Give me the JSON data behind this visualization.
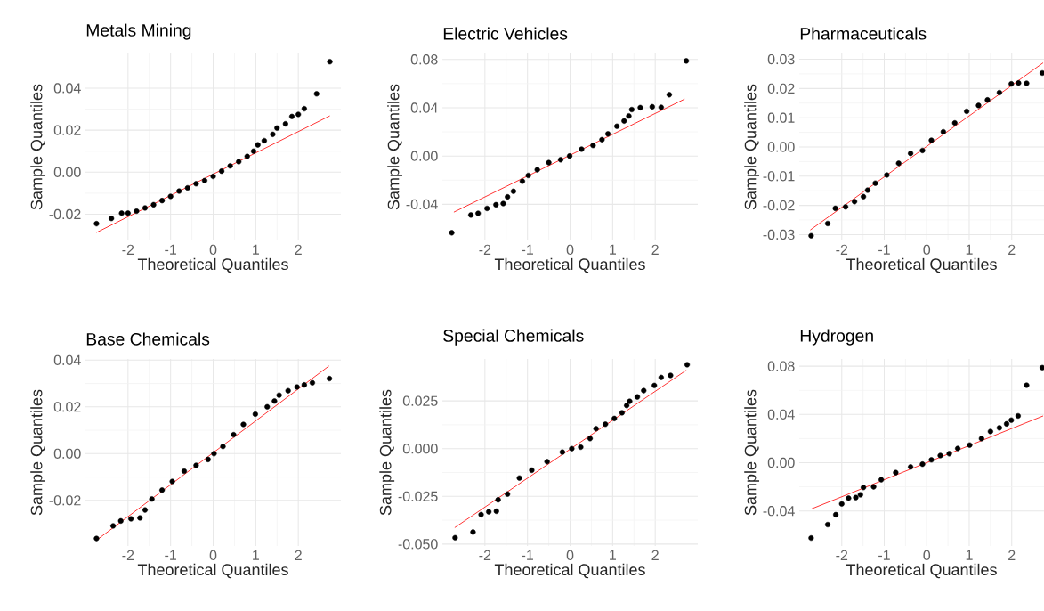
{
  "chart_data": [
    {
      "type": "scatter",
      "title": "Metals Mining",
      "xlabel": "Theoretical Quantiles",
      "ylabel": "Sample Quantiles",
      "grid": true,
      "xlim": [
        -3.0,
        3.0
      ],
      "xticks": [
        -2,
        -1,
        0,
        1,
        2
      ],
      "ylim": [
        -0.0325,
        0.0565
      ],
      "yticks": [
        {
          "value": -0.02,
          "label": "-0.02"
        },
        {
          "value": 0,
          "label": "0.00"
        },
        {
          "value": 0.02,
          "label": "0.02"
        },
        {
          "value": 0.04,
          "label": "0.04"
        }
      ],
      "series": [
        {
          "type": "scatter",
          "marker": "circle",
          "color": "#000000",
          "x": [
            -2.74,
            -2.39,
            -2.15,
            -2.0,
            -1.8,
            -1.6,
            -1.4,
            -1.2,
            -1.0,
            -0.8,
            -0.6,
            -0.4,
            -0.2,
            0,
            0.2,
            0.4,
            0.6,
            0.8,
            0.95,
            1.05,
            1.2,
            1.4,
            1.5,
            1.7,
            1.85,
            2.0,
            2.14,
            2.43,
            2.74
          ],
          "values": [
            -0.0245,
            -0.022,
            -0.0195,
            -0.0195,
            -0.0185,
            -0.017,
            -0.0155,
            -0.0135,
            -0.0115,
            -0.009,
            -0.0075,
            -0.0055,
            -0.004,
            -0.002,
            0.0005,
            0.003,
            0.005,
            0.0075,
            0.01,
            0.013,
            0.015,
            0.018,
            0.021,
            0.023,
            0.0265,
            0.0275,
            0.0302,
            0.0373,
            0.0526
          ]
        },
        {
          "type": "line",
          "color": "#ff0000",
          "x": [
            -2.74,
            2.74
          ],
          "values": [
            -0.0287,
            0.0268
          ]
        }
      ]
    },
    {
      "type": "scatter",
      "title": "Electric Vehicles",
      "xlabel": "Theoretical Quantiles",
      "ylabel": "Sample Quantiles",
      "grid": true,
      "xlim": [
        -3.0,
        3.0
      ],
      "xticks": [
        -2,
        -1,
        0,
        1,
        2
      ],
      "ylim": [
        -0.07,
        0.085
      ],
      "yticks": [
        {
          "value": -0.04,
          "label": "-0.04"
        },
        {
          "value": 0,
          "label": "0.00"
        },
        {
          "value": 0.04,
          "label": "0.04"
        },
        {
          "value": 0.08,
          "label": "0.08"
        }
      ],
      "series": [
        {
          "type": "scatter",
          "marker": "circle",
          "color": "#000000",
          "x": [
            -2.78,
            -2.33,
            -2.16,
            -1.95,
            -1.74,
            -1.57,
            -1.47,
            -1.33,
            -1.12,
            -0.98,
            -0.77,
            -0.5,
            -0.22,
            -0.01,
            0.27,
            0.54,
            0.75,
            0.89,
            1.1,
            1.27,
            1.38,
            1.45,
            1.65,
            1.93,
            2.14,
            2.33,
            2.73
          ],
          "values": [
            -0.0636,
            -0.0489,
            -0.0475,
            -0.0434,
            -0.0404,
            -0.0394,
            -0.0339,
            -0.0292,
            -0.0209,
            -0.0161,
            -0.0114,
            -0.0055,
            -0.0031,
            0.0,
            0.0057,
            0.0088,
            0.0135,
            0.0183,
            0.0247,
            0.029,
            0.0332,
            0.0385,
            0.0401,
            0.0408,
            0.0404,
            0.0508,
            0.0788
          ]
        },
        {
          "type": "line",
          "color": "#ff0000",
          "x": [
            -2.73,
            2.69
          ],
          "values": [
            -0.0465,
            0.0472
          ]
        }
      ]
    },
    {
      "type": "scatter",
      "title": "Pharmaceuticals",
      "xlabel": "Theoretical Quantiles",
      "ylabel": "Sample Quantiles",
      "grid": true,
      "xlim": [
        -3.0,
        2.76
      ],
      "xticks": [
        -2,
        -1,
        0,
        1,
        2
      ],
      "ylim": [
        -0.032,
        0.032
      ],
      "yticks": [
        {
          "value": -0.03,
          "label": "-0.03"
        },
        {
          "value": -0.02,
          "label": "-0.02"
        },
        {
          "value": -0.01,
          "label": "-0.01"
        },
        {
          "value": 0,
          "label": "0.00"
        },
        {
          "value": 0.01,
          "label": "0.01"
        },
        {
          "value": 0.02,
          "label": "0.02"
        },
        {
          "value": 0.03,
          "label": "0.03"
        }
      ],
      "series": [
        {
          "type": "scatter",
          "marker": "circle",
          "color": "#000000",
          "x": [
            -2.72,
            -2.33,
            -2.15,
            -1.91,
            -1.7,
            -1.49,
            -1.39,
            -1.21,
            -0.94,
            -0.66,
            -0.38,
            -0.1,
            0.11,
            0.39,
            0.66,
            0.94,
            1.22,
            1.43,
            1.71,
            1.99,
            2.16,
            2.35,
            2.72
          ],
          "values": [
            -0.0304,
            -0.0262,
            -0.021,
            -0.0205,
            -0.0187,
            -0.017,
            -0.0148,
            -0.0124,
            -0.0096,
            -0.0056,
            -0.0022,
            -0.0012,
            0.0023,
            0.0052,
            0.0082,
            0.0122,
            0.0142,
            0.0161,
            0.0186,
            0.0216,
            0.0219,
            0.0218,
            0.0253
          ]
        },
        {
          "type": "line",
          "color": "#ff0000",
          "x": [
            -2.74,
            2.74
          ],
          "values": [
            -0.0284,
            0.0288
          ]
        }
      ]
    },
    {
      "type": "scatter",
      "title": "Base Chemicals",
      "xlabel": "Theoretical Quantiles",
      "ylabel": "Sample Quantiles",
      "grid": true,
      "xlim": [
        -3.0,
        3.0
      ],
      "xticks": [
        -2,
        -1,
        0,
        1,
        2
      ],
      "ylim": [
        -0.0395,
        0.0405
      ],
      "yticks": [
        {
          "value": -0.02,
          "label": "-0.02"
        },
        {
          "value": 0,
          "label": "0.00"
        },
        {
          "value": 0.02,
          "label": "0.02"
        },
        {
          "value": 0.04,
          "label": "0.04"
        }
      ],
      "series": [
        {
          "type": "scatter",
          "marker": "circle",
          "color": "#000000",
          "x": [
            -2.74,
            -2.35,
            -2.17,
            -1.93,
            -1.72,
            -1.6,
            -1.44,
            -1.2,
            -0.96,
            -0.68,
            -0.4,
            -0.12,
            0.02,
            0.23,
            0.48,
            0.71,
            0.99,
            1.27,
            1.44,
            1.55,
            1.76,
            1.97,
            2.14,
            2.33,
            2.73
          ],
          "values": [
            -0.0363,
            -0.0309,
            -0.0288,
            -0.0279,
            -0.0275,
            -0.0241,
            -0.0194,
            -0.0156,
            -0.0119,
            -0.0075,
            -0.005,
            -0.0025,
            0.0,
            0.0031,
            0.0081,
            0.0125,
            0.0169,
            0.02,
            0.0225,
            0.025,
            0.0269,
            0.0285,
            0.0294,
            0.0303,
            0.0321
          ]
        },
        {
          "type": "line",
          "color": "#ff0000",
          "x": [
            -2.73,
            2.72
          ],
          "values": [
            -0.0369,
            0.0375
          ]
        }
      ]
    },
    {
      "type": "scatter",
      "title": "Special Chemicals",
      "xlabel": "Theoretical Quantiles",
      "ylabel": "Sample Quantiles",
      "grid": true,
      "xlim": [
        -3.0,
        3.0
      ],
      "xticks": [
        -2,
        -1,
        0,
        1,
        2
      ],
      "ylim": [
        -0.051,
        0.047
      ],
      "yticks": [
        {
          "value": -0.05,
          "label": "-0.050"
        },
        {
          "value": -0.025,
          "label": "-0.025"
        },
        {
          "value": 0,
          "label": "0.000"
        },
        {
          "value": 0.025,
          "label": "0.025"
        }
      ],
      "series": [
        {
          "type": "scatter",
          "marker": "circle",
          "color": "#000000",
          "x": [
            -2.7,
            -2.28,
            -2.09,
            -1.91,
            -1.73,
            -1.69,
            -1.47,
            -1.19,
            -0.9,
            -0.54,
            -0.18,
            0.04,
            0.25,
            0.47,
            0.61,
            0.83,
            1.04,
            1.22,
            1.33,
            1.4,
            1.58,
            1.73,
            1.98,
            2.14,
            2.36,
            2.75
          ],
          "values": [
            -0.0467,
            -0.0437,
            -0.0346,
            -0.0331,
            -0.0328,
            -0.0268,
            -0.0238,
            -0.0154,
            -0.0113,
            -0.0068,
            -0.0018,
            0.0,
            0.0008,
            0.0053,
            0.0105,
            0.0128,
            0.0158,
            0.0188,
            0.0226,
            0.0248,
            0.0271,
            0.0304,
            0.0331,
            0.0373,
            0.0384,
            0.044
          ]
        },
        {
          "type": "line",
          "color": "#ff0000",
          "x": [
            -2.71,
            2.73
          ],
          "values": [
            -0.0414,
            0.0411
          ]
        }
      ]
    },
    {
      "type": "scatter",
      "title": "Hydrogen",
      "xlabel": "Theoretical Quantiles",
      "ylabel": "Sample Quantiles",
      "grid": true,
      "xlim": [
        -3.0,
        2.76
      ],
      "xticks": [
        -2,
        -1,
        0,
        1,
        2
      ],
      "ylim": [
        -0.069,
        0.086
      ],
      "yticks": [
        {
          "value": -0.04,
          "label": "-0.04"
        },
        {
          "value": 0,
          "label": "0.00"
        },
        {
          "value": 0.04,
          "label": "0.04"
        },
        {
          "value": 0.08,
          "label": "0.08"
        }
      ],
      "series": [
        {
          "type": "scatter",
          "marker": "circle",
          "color": "#000000",
          "x": [
            -2.72,
            -2.33,
            -2.14,
            -2.0,
            -1.84,
            -1.67,
            -1.56,
            -1.49,
            -1.25,
            -1.07,
            -0.73,
            -0.38,
            -0.1,
            0.11,
            0.32,
            0.53,
            0.73,
            1.01,
            1.29,
            1.5,
            1.71,
            1.88,
            1.99,
            2.15,
            2.35,
            2.72
          ],
          "values": [
            -0.0624,
            -0.0513,
            -0.0431,
            -0.0341,
            -0.0294,
            -0.0289,
            -0.0266,
            -0.0205,
            -0.02,
            -0.0141,
            -0.0082,
            -0.0035,
            -0.0012,
            0.0024,
            0.0059,
            0.0075,
            0.0118,
            0.0146,
            0.02,
            0.0259,
            0.0289,
            0.0322,
            0.0353,
            0.0388,
            0.0642,
            0.0788
          ]
        },
        {
          "type": "line",
          "color": "#ff0000",
          "x": [
            -2.72,
            2.74
          ],
          "values": [
            -0.0384,
            0.0388
          ]
        }
      ]
    }
  ]
}
